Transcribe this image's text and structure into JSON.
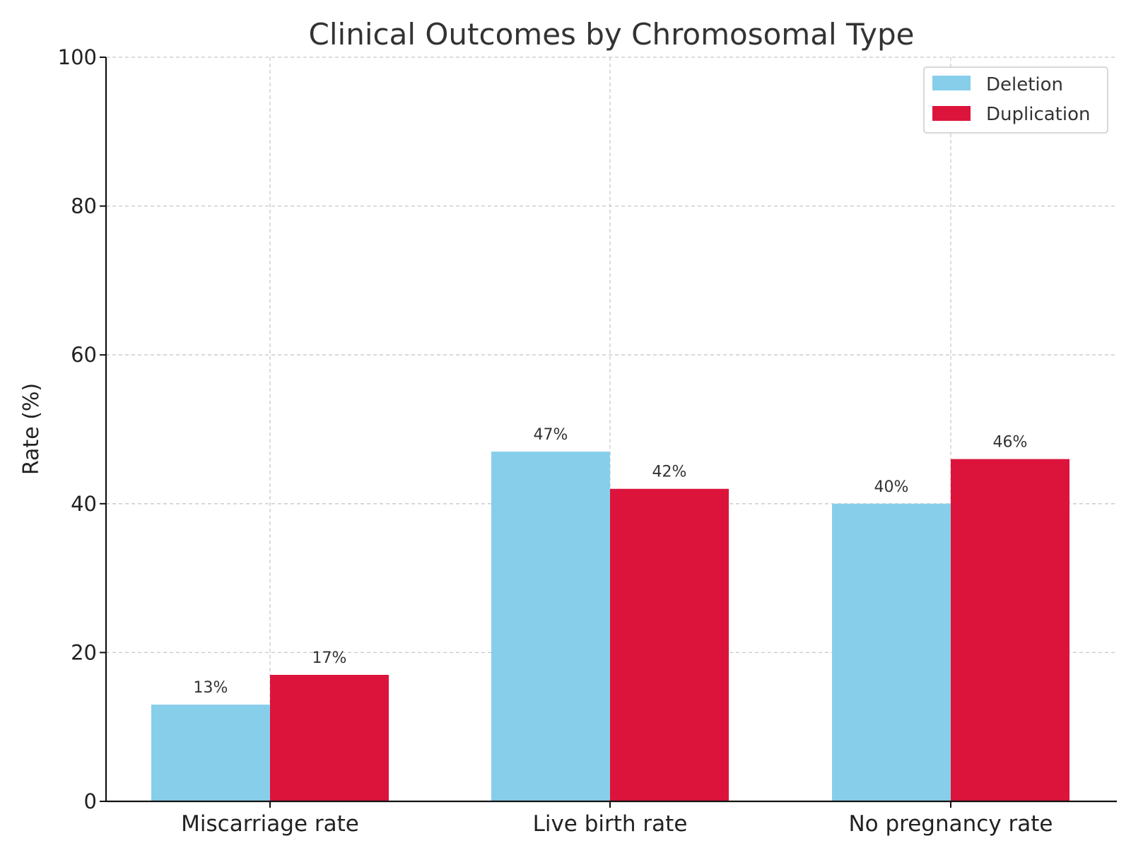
{
  "chart_data": {
    "type": "bar",
    "title": "Clinical Outcomes by Chromosomal Type",
    "xlabel": "",
    "ylabel": "Rate (%)",
    "ylim": [
      0,
      100
    ],
    "yticks": [
      0,
      20,
      40,
      60,
      80,
      100
    ],
    "grid": true,
    "legend_position": "top-right",
    "categories": [
      "Miscarriage rate",
      "Live birth rate",
      "No pregnancy rate"
    ],
    "series": [
      {
        "name": "Deletion",
        "color": "#87ceeb",
        "values": [
          13,
          47,
          40
        ],
        "labels": [
          "13%",
          "47%",
          "40%"
        ]
      },
      {
        "name": "Duplication",
        "color": "#dc143c",
        "values": [
          17,
          42,
          46
        ],
        "labels": [
          "17%",
          "42%",
          "46%"
        ]
      }
    ]
  }
}
